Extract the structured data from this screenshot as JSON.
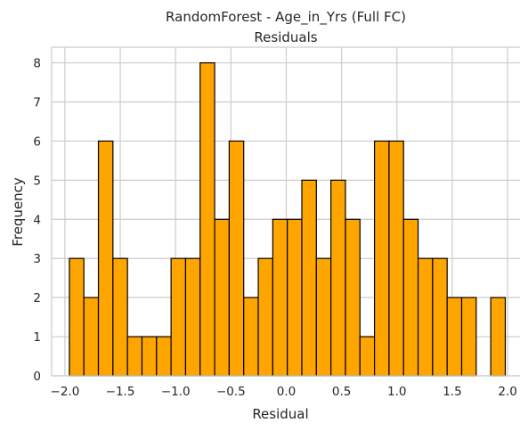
{
  "chart_data": {
    "type": "bar",
    "title": "RandomForest - Age_in_Yrs (Full FC)",
    "subtitle": "Residuals",
    "xlabel": "Residual",
    "ylabel": "Frequency",
    "xlim": [
      -2.12,
      2.12
    ],
    "ylim": [
      0,
      8.4
    ],
    "x_ticks": [
      -2.0,
      -1.5,
      -1.0,
      -0.5,
      0.0,
      0.5,
      1.0,
      1.5,
      2.0
    ],
    "x_tick_labels": [
      "−2.0",
      "−1.5",
      "−1.0",
      "−0.5",
      "0.0",
      "0.5",
      "1.0",
      "1.5",
      "2.0"
    ],
    "y_ticks": [
      0,
      1,
      2,
      3,
      4,
      5,
      6,
      7,
      8
    ],
    "y_tick_labels": [
      "0",
      "1",
      "2",
      "3",
      "4",
      "5",
      "6",
      "7",
      "8"
    ],
    "bin_start": -1.96,
    "bin_width": 0.1313,
    "values": [
      3,
      2,
      6,
      3,
      1,
      1,
      1,
      3,
      3,
      8,
      4,
      6,
      2,
      3,
      4,
      4,
      5,
      3,
      5,
      4,
      1,
      6,
      6,
      4,
      3,
      3,
      2,
      2,
      0,
      2
    ],
    "grid": true,
    "colors": {
      "bar": "#FFA500",
      "edge": "#000000",
      "grid": "#cccccc"
    }
  }
}
